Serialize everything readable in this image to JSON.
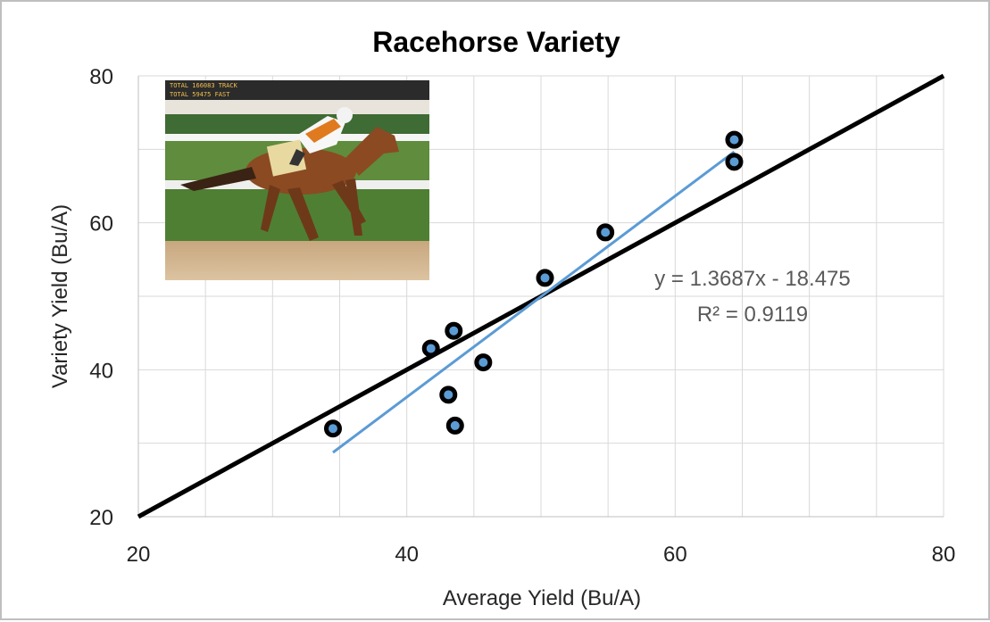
{
  "chart_data": {
    "type": "scatter",
    "title": "Racehorse Variety",
    "xlabel": "Average Yield (Bu/A)",
    "ylabel": "Variety Yield (Bu/A)",
    "xlim": [
      20,
      80
    ],
    "ylim": [
      20,
      80
    ],
    "x_ticks": [
      "20",
      "40",
      "60",
      "80"
    ],
    "y_ticks": [
      "20",
      "40",
      "60",
      "80"
    ],
    "grid": true,
    "points": [
      {
        "x": 34.5,
        "y": 32.0
      },
      {
        "x": 41.8,
        "y": 42.9
      },
      {
        "x": 43.5,
        "y": 45.3
      },
      {
        "x": 43.1,
        "y": 36.6
      },
      {
        "x": 43.6,
        "y": 32.4
      },
      {
        "x": 45.7,
        "y": 41.0
      },
      {
        "x": 50.3,
        "y": 52.5
      },
      {
        "x": 54.8,
        "y": 58.7
      },
      {
        "x": 64.4,
        "y": 71.3
      },
      {
        "x": 64.4,
        "y": 68.3
      }
    ],
    "reference_line": {
      "x": [
        20,
        80
      ],
      "y": [
        20,
        80
      ],
      "color": "#000000"
    },
    "trendline": {
      "slope": 1.3687,
      "intercept": -18.475,
      "x_range": [
        34.5,
        64.4
      ],
      "color": "#5b9bd5",
      "equation": "y = 1.3687x - 18.475",
      "r_squared": "R² = 0.9119"
    },
    "inset_photo": "racehorse-photo",
    "photo_scoreboard": {
      "line1": "TOTAL   166083   TRACK",
      "line2": "TOTAL    59475   FAST"
    }
  }
}
